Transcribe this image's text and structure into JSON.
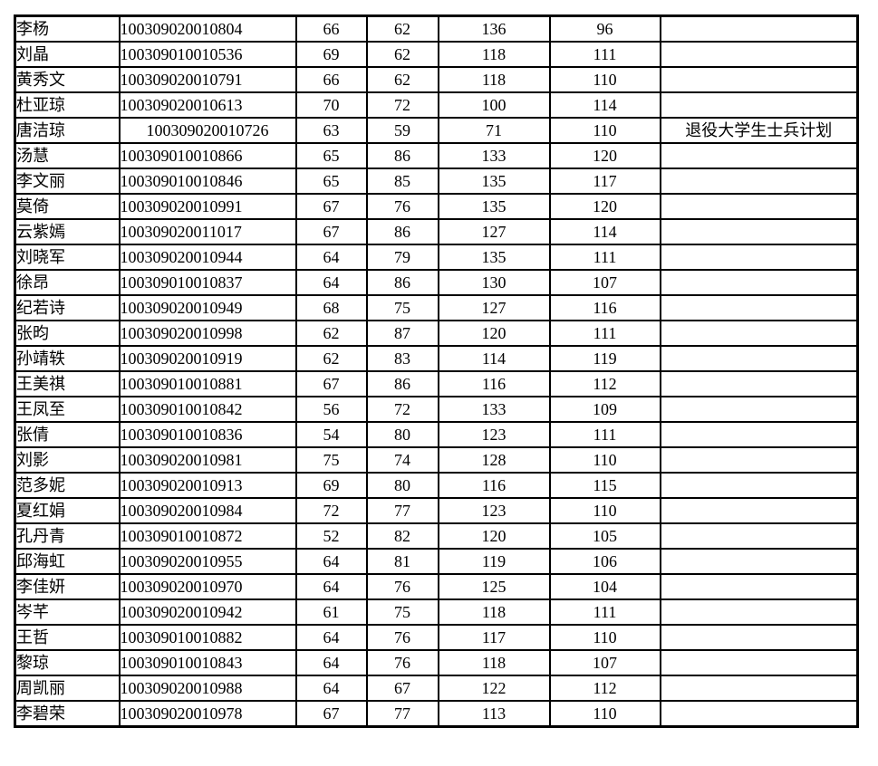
{
  "colors": {
    "background": "#ffffff",
    "border": "#000000",
    "text": "#000000"
  },
  "table": {
    "remark_row5": "退役大学生士兵计划",
    "rows": [
      {
        "name": "李杨",
        "exam_number": "100309020010804",
        "exam_number_centered": false,
        "scores": [
          66,
          62,
          136,
          96
        ],
        "remark": ""
      },
      {
        "name": "刘晶",
        "exam_number": "100309010010536",
        "exam_number_centered": false,
        "scores": [
          69,
          62,
          118,
          111
        ],
        "remark": ""
      },
      {
        "name": "黄秀文",
        "exam_number": "100309020010791",
        "exam_number_centered": false,
        "scores": [
          66,
          62,
          118,
          110
        ],
        "remark": ""
      },
      {
        "name": "杜亚琼",
        "exam_number": "100309020010613",
        "exam_number_centered": false,
        "scores": [
          70,
          72,
          100,
          114
        ],
        "remark": ""
      },
      {
        "name": "唐洁琼",
        "exam_number": "100309020010726",
        "exam_number_centered": true,
        "scores": [
          63,
          59,
          71,
          110
        ],
        "remark": "退役大学生士兵计划"
      },
      {
        "name": "汤慧",
        "exam_number": "100309010010866",
        "exam_number_centered": false,
        "scores": [
          65,
          86,
          133,
          120
        ],
        "remark": ""
      },
      {
        "name": "李文丽",
        "exam_number": "100309010010846",
        "exam_number_centered": false,
        "scores": [
          65,
          85,
          135,
          117
        ],
        "remark": ""
      },
      {
        "name": "莫倚",
        "exam_number": "100309020010991",
        "exam_number_centered": false,
        "scores": [
          67,
          76,
          135,
          120
        ],
        "remark": ""
      },
      {
        "name": "云紫嫣",
        "exam_number": "100309020011017",
        "exam_number_centered": false,
        "scores": [
          67,
          86,
          127,
          114
        ],
        "remark": ""
      },
      {
        "name": "刘晓军",
        "exam_number": "100309020010944",
        "exam_number_centered": false,
        "scores": [
          64,
          79,
          135,
          111
        ],
        "remark": ""
      },
      {
        "name": "徐昂",
        "exam_number": "100309010010837",
        "exam_number_centered": false,
        "scores": [
          64,
          86,
          130,
          107
        ],
        "remark": ""
      },
      {
        "name": "纪若诗",
        "exam_number": "100309020010949",
        "exam_number_centered": false,
        "scores": [
          68,
          75,
          127,
          116
        ],
        "remark": ""
      },
      {
        "name": "张昀",
        "exam_number": "100309020010998",
        "exam_number_centered": false,
        "scores": [
          62,
          87,
          120,
          111
        ],
        "remark": ""
      },
      {
        "name": "孙靖轶",
        "exam_number": "100309020010919",
        "exam_number_centered": false,
        "scores": [
          62,
          83,
          114,
          119
        ],
        "remark": ""
      },
      {
        "name": "王美祺",
        "exam_number": "100309010010881",
        "exam_number_centered": false,
        "scores": [
          67,
          86,
          116,
          112
        ],
        "remark": ""
      },
      {
        "name": "王凤至",
        "exam_number": "100309010010842",
        "exam_number_centered": false,
        "scores": [
          56,
          72,
          133,
          109
        ],
        "remark": ""
      },
      {
        "name": "张倩",
        "exam_number": "100309010010836",
        "exam_number_centered": false,
        "scores": [
          54,
          80,
          123,
          111
        ],
        "remark": ""
      },
      {
        "name": "刘影",
        "exam_number": "100309020010981",
        "exam_number_centered": false,
        "scores": [
          75,
          74,
          128,
          110
        ],
        "remark": ""
      },
      {
        "name": "范多妮",
        "exam_number": "100309020010913",
        "exam_number_centered": false,
        "scores": [
          69,
          80,
          116,
          115
        ],
        "remark": ""
      },
      {
        "name": "夏红娟",
        "exam_number": "100309020010984",
        "exam_number_centered": false,
        "scores": [
          72,
          77,
          123,
          110
        ],
        "remark": ""
      },
      {
        "name": "孔丹青",
        "exam_number": "100309010010872",
        "exam_number_centered": false,
        "scores": [
          52,
          82,
          120,
          105
        ],
        "remark": ""
      },
      {
        "name": "邱海虹",
        "exam_number": "100309020010955",
        "exam_number_centered": false,
        "scores": [
          64,
          81,
          119,
          106
        ],
        "remark": ""
      },
      {
        "name": "李佳妍",
        "exam_number": "100309020010970",
        "exam_number_centered": false,
        "scores": [
          64,
          76,
          125,
          104
        ],
        "remark": ""
      },
      {
        "name": "岑芊",
        "exam_number": "100309020010942",
        "exam_number_centered": false,
        "scores": [
          61,
          75,
          118,
          111
        ],
        "remark": ""
      },
      {
        "name": "王哲",
        "exam_number": "100309010010882",
        "exam_number_centered": false,
        "scores": [
          64,
          76,
          117,
          110
        ],
        "remark": ""
      },
      {
        "name": "黎琼",
        "exam_number": "100309010010843",
        "exam_number_centered": false,
        "scores": [
          64,
          76,
          118,
          107
        ],
        "remark": ""
      },
      {
        "name": "周凯丽",
        "exam_number": "100309020010988",
        "exam_number_centered": false,
        "scores": [
          64,
          67,
          122,
          112
        ],
        "remark": ""
      },
      {
        "name": "李碧荣",
        "exam_number": "100309020010978",
        "exam_number_centered": false,
        "scores": [
          67,
          77,
          113,
          110
        ],
        "remark": ""
      }
    ]
  }
}
